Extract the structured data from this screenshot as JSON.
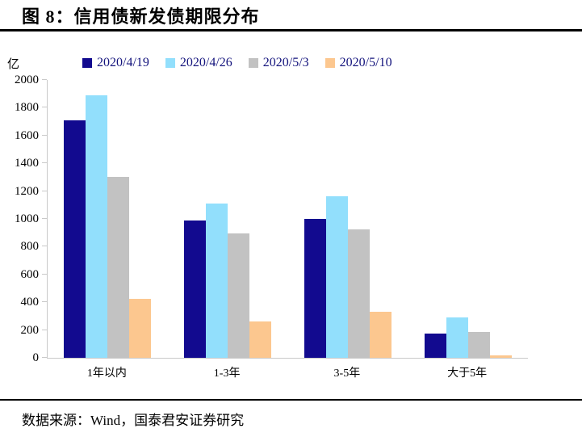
{
  "figure": {
    "title": "图 8：信用债新发债期限分布"
  },
  "chart_data": {
    "type": "bar",
    "title": "信用债新发债期限分布",
    "unit": "亿",
    "categories": [
      "1年以内",
      "1-3年",
      "3-5年",
      "大于5年"
    ],
    "series": [
      {
        "name": "2020/4/19",
        "color": "#120A8F",
        "values": [
          1710,
          990,
          1000,
          175
        ]
      },
      {
        "name": "2020/4/26",
        "color": "#92DFFC",
        "values": [
          1890,
          1110,
          1160,
          290
        ]
      },
      {
        "name": "2020/5/3",
        "color": "#C2C2C2",
        "values": [
          1300,
          895,
          925,
          185
        ]
      },
      {
        "name": "2020/5/10",
        "color": "#FCC78F",
        "values": [
          425,
          260,
          330,
          20
        ]
      }
    ],
    "ylim": [
      0,
      2000
    ],
    "yticks": [
      0,
      200,
      400,
      600,
      800,
      1000,
      1200,
      1400,
      1600,
      1800,
      2000
    ],
    "legend_position": "top",
    "grid": false
  },
  "colors": {
    "legend_text": "#14147D",
    "axis_line": "#C9C9C9"
  },
  "source": {
    "text": "数据来源：Wind，国泰君安证券研究"
  }
}
